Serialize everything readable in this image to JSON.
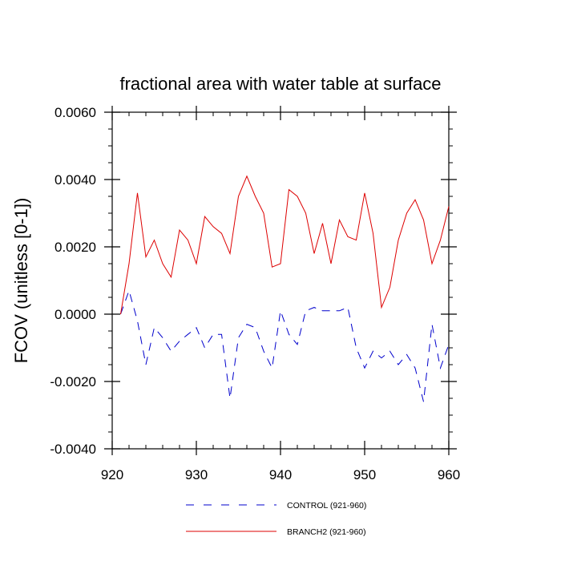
{
  "chart_data": {
    "type": "line",
    "title": "fractional area with water table at surface",
    "xlabel": "",
    "ylabel": "FCOV  (unitless [0-1])",
    "xlim": [
      920,
      960
    ],
    "ylim": [
      -0.004,
      0.006
    ],
    "x_ticks": [
      "920",
      "930",
      "940",
      "950",
      "960"
    ],
    "y_ticks": [
      "-0.0040",
      "-0.0020",
      "0.0000",
      "0.0020",
      "0.0040",
      "0.0060"
    ],
    "x": [
      921,
      922,
      923,
      924,
      925,
      926,
      927,
      928,
      929,
      930,
      931,
      932,
      933,
      934,
      935,
      936,
      937,
      938,
      939,
      940,
      941,
      942,
      943,
      944,
      945,
      946,
      947,
      948,
      949,
      950,
      951,
      952,
      953,
      954,
      955,
      956,
      957,
      958,
      959,
      960
    ],
    "series": [
      {
        "name": "CONTROL (921-960)",
        "color": "#0000cc",
        "dash": "dashed",
        "values": [
          0.0,
          0.0007,
          -0.0002,
          -0.0015,
          -0.0004,
          -0.0007,
          -0.0011,
          -0.0008,
          -0.0006,
          -0.0004,
          -0.001,
          -0.0006,
          -0.0006,
          -0.0025,
          -0.0007,
          -0.0003,
          -0.0004,
          -0.0011,
          -0.0016,
          0.0001,
          -0.0006,
          -0.0009,
          0.0001,
          0.0002,
          0.0001,
          0.0001,
          0.0001,
          0.0002,
          -0.001,
          -0.0016,
          -0.0011,
          -0.0013,
          -0.0011,
          -0.0015,
          -0.0012,
          -0.0016,
          -0.0026,
          -0.0003,
          -0.0016,
          -0.0009
        ]
      },
      {
        "name": "BRANCH2 (921-960)",
        "color": "#dd0000",
        "dash": "solid",
        "values": [
          0.0,
          0.0015,
          0.0036,
          0.0017,
          0.0022,
          0.0015,
          0.0011,
          0.0025,
          0.0022,
          0.0015,
          0.0029,
          0.0026,
          0.0024,
          0.0018,
          0.0035,
          0.0041,
          0.0035,
          0.003,
          0.0014,
          0.0015,
          0.0037,
          0.0035,
          0.003,
          0.0018,
          0.0027,
          0.0015,
          0.0028,
          0.0023,
          0.0022,
          0.0036,
          0.0024,
          0.0002,
          0.0008,
          0.0022,
          0.003,
          0.0034,
          0.0028,
          0.0015,
          0.0022,
          0.0032
        ]
      }
    ],
    "legend_position": "bottom"
  }
}
